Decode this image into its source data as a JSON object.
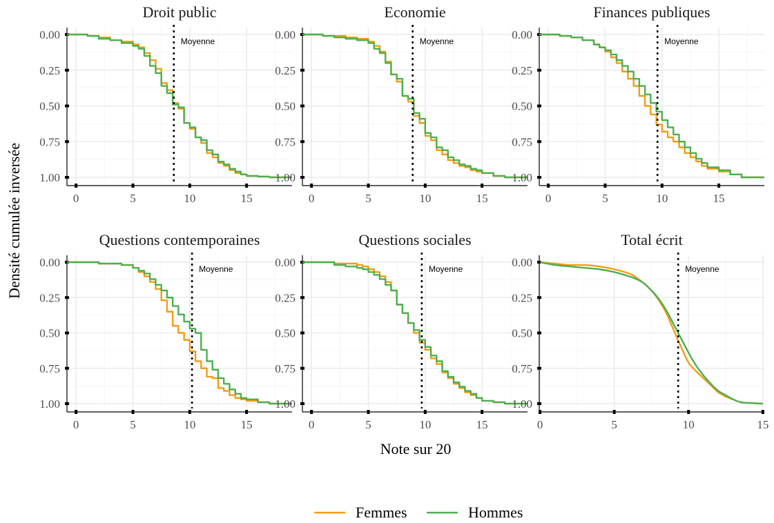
{
  "chart_data": {
    "type": "line",
    "xlabel": "Note sur 20",
    "ylabel": "Densité cumulée inversée",
    "mean_label": "Moyenne",
    "colors": {
      "Femmes": "#f39c12",
      "Hommes": "#4caf50"
    },
    "legend": {
      "position": "bottom",
      "entries": [
        "Femmes",
        "Hommes"
      ]
    },
    "grid": true,
    "y_reversed": true,
    "ylim": [
      0,
      1
    ],
    "yticks": [
      0,
      0.25,
      0.5,
      0.75,
      1
    ],
    "ytick_labels": [
      "0.00",
      "0.25",
      "0.50",
      "0.75",
      "1.00"
    ],
    "panels": [
      {
        "title": "Droit public",
        "xlim": [
          -0.8,
          19
        ],
        "xticks": [
          0,
          5,
          10,
          15
        ],
        "mean": 8.6,
        "step": true,
        "series": [
          {
            "name": "Femmes",
            "x": [
              -0.8,
              1,
              2,
              3,
              4,
              5,
              5.5,
              6,
              6.5,
              7,
              7.5,
              8,
              8.5,
              9,
              9.5,
              10,
              10.5,
              11,
              11.5,
              12,
              12.5,
              13,
              13.5,
              14,
              14.5,
              15,
              16,
              17,
              19
            ],
            "y": [
              0,
              0.01,
              0.02,
              0.04,
              0.05,
              0.07,
              0.09,
              0.13,
              0.18,
              0.24,
              0.34,
              0.39,
              0.48,
              0.52,
              0.62,
              0.66,
              0.72,
              0.76,
              0.83,
              0.86,
              0.9,
              0.92,
              0.95,
              0.97,
              0.98,
              0.99,
              0.995,
              1,
              1
            ]
          },
          {
            "name": "Hommes",
            "x": [
              -0.8,
              1,
              2,
              3,
              4,
              5,
              5.5,
              6,
              6.5,
              7,
              7.5,
              8,
              8.5,
              9,
              9.5,
              10,
              10.5,
              11,
              11.5,
              12,
              12.5,
              13,
              13.5,
              14,
              14.5,
              15,
              16,
              17,
              19
            ],
            "y": [
              0,
              0.01,
              0.03,
              0.04,
              0.06,
              0.08,
              0.1,
              0.15,
              0.22,
              0.27,
              0.36,
              0.41,
              0.49,
              0.51,
              0.62,
              0.65,
              0.72,
              0.74,
              0.81,
              0.84,
              0.89,
              0.91,
              0.94,
              0.96,
              0.98,
              0.99,
              0.995,
              1,
              1
            ]
          }
        ]
      },
      {
        "title": "Economie",
        "xlim": [
          -0.8,
          19
        ],
        "xticks": [
          0,
          5,
          10,
          15
        ],
        "mean": 8.9,
        "step": true,
        "series": [
          {
            "name": "Femmes",
            "x": [
              -0.8,
              1,
              2,
              3,
              4,
              5,
              5.5,
              6,
              6.5,
              7,
              7.5,
              8,
              8.5,
              9,
              9.5,
              10,
              10.5,
              11,
              11.5,
              12,
              12.5,
              13,
              13.5,
              14,
              14.5,
              15,
              16,
              17,
              19
            ],
            "y": [
              0,
              0.01,
              0.01,
              0.02,
              0.03,
              0.05,
              0.08,
              0.12,
              0.19,
              0.28,
              0.33,
              0.43,
              0.47,
              0.57,
              0.62,
              0.71,
              0.74,
              0.81,
              0.84,
              0.88,
              0.9,
              0.92,
              0.93,
              0.95,
              0.96,
              0.97,
              0.99,
              1,
              1
            ]
          },
          {
            "name": "Hommes",
            "x": [
              -0.8,
              1,
              2,
              3,
              4,
              5,
              5.5,
              6,
              6.5,
              7,
              7.5,
              8,
              8.5,
              9,
              9.5,
              10,
              10.5,
              11,
              11.5,
              12,
              12.5,
              13,
              13.5,
              14,
              14.5,
              15,
              16,
              17,
              19
            ],
            "y": [
              0,
              0.01,
              0.02,
              0.03,
              0.04,
              0.06,
              0.1,
              0.13,
              0.2,
              0.28,
              0.31,
              0.43,
              0.45,
              0.55,
              0.59,
              0.69,
              0.72,
              0.79,
              0.81,
              0.86,
              0.88,
              0.91,
              0.92,
              0.94,
              0.95,
              0.97,
              0.99,
              1,
              1
            ]
          }
        ]
      },
      {
        "title": "Finances publiques",
        "xlim": [
          -0.8,
          19
        ],
        "xticks": [
          0,
          5,
          10,
          15
        ],
        "mean": 9.6,
        "step": true,
        "series": [
          {
            "name": "Femmes",
            "x": [
              -0.8,
              1,
              2,
              3,
              4,
              4.5,
              5,
              5.5,
              6,
              6.5,
              7,
              7.5,
              8,
              8.5,
              9,
              9.5,
              10,
              10.5,
              11,
              11.5,
              12,
              12.5,
              13,
              13.5,
              14,
              15,
              16,
              17,
              19
            ],
            "y": [
              0,
              0.01,
              0.02,
              0.04,
              0.07,
              0.09,
              0.12,
              0.16,
              0.2,
              0.26,
              0.31,
              0.36,
              0.43,
              0.5,
              0.56,
              0.63,
              0.68,
              0.72,
              0.75,
              0.79,
              0.83,
              0.86,
              0.89,
              0.92,
              0.94,
              0.96,
              0.98,
              1,
              1
            ]
          },
          {
            "name": "Hommes",
            "x": [
              -0.8,
              1,
              2,
              3,
              4,
              4.5,
              5,
              5.5,
              6,
              6.5,
              7,
              7.5,
              8,
              8.5,
              9,
              9.5,
              10,
              10.5,
              11,
              11.5,
              12,
              12.5,
              13,
              13.5,
              14,
              15,
              16,
              17,
              19
            ],
            "y": [
              0,
              0.01,
              0.02,
              0.04,
              0.07,
              0.09,
              0.11,
              0.14,
              0.18,
              0.22,
              0.26,
              0.31,
              0.36,
              0.42,
              0.48,
              0.54,
              0.6,
              0.65,
              0.7,
              0.75,
              0.79,
              0.83,
              0.87,
              0.9,
              0.93,
              0.95,
              0.98,
              1,
              1
            ]
          }
        ]
      },
      {
        "title": "Questions contemporaines",
        "xlim": [
          -0.8,
          19
        ],
        "xticks": [
          0,
          5,
          10,
          15
        ],
        "mean": 10.2,
        "step": true,
        "series": [
          {
            "name": "Femmes",
            "x": [
              -0.8,
              2,
              4,
              5,
              5.5,
              6,
              6.5,
              7,
              7.5,
              8,
              8.5,
              9,
              9.5,
              10,
              10.5,
              11,
              11.5,
              12,
              12.5,
              13,
              13.5,
              14,
              14.5,
              15,
              16,
              17,
              19
            ],
            "y": [
              0,
              0.01,
              0.02,
              0.04,
              0.07,
              0.1,
              0.14,
              0.19,
              0.27,
              0.35,
              0.45,
              0.5,
              0.55,
              0.63,
              0.7,
              0.75,
              0.81,
              0.82,
              0.89,
              0.91,
              0.94,
              0.96,
              0.97,
              0.98,
              0.99,
              1,
              1
            ]
          },
          {
            "name": "Hommes",
            "x": [
              -0.8,
              2,
              4,
              5,
              5.5,
              6,
              6.5,
              7,
              7.5,
              8,
              8.5,
              9,
              9.5,
              10,
              10.5,
              11,
              11.5,
              12,
              12.5,
              13,
              13.5,
              14,
              14.5,
              15,
              16,
              17,
              19
            ],
            "y": [
              0,
              0.01,
              0.02,
              0.04,
              0.06,
              0.08,
              0.12,
              0.16,
              0.2,
              0.25,
              0.31,
              0.37,
              0.42,
              0.47,
              0.5,
              0.62,
              0.7,
              0.76,
              0.82,
              0.86,
              0.9,
              0.93,
              0.96,
              0.97,
              0.99,
              1,
              1
            ]
          }
        ]
      },
      {
        "title": "Questions sociales",
        "xlim": [
          -0.8,
          19
        ],
        "xticks": [
          0,
          5,
          10,
          15
        ],
        "mean": 9.7,
        "step": true,
        "series": [
          {
            "name": "Femmes",
            "x": [
              -0.8,
              2,
              3,
              4,
              4.5,
              5,
              5.5,
              6,
              6.5,
              7,
              7.5,
              8,
              8.5,
              9,
              9.5,
              10,
              10.5,
              11,
              11.5,
              12,
              12.5,
              13,
              13.5,
              14,
              14.5,
              15,
              16,
              17,
              19
            ],
            "y": [
              0,
              0.01,
              0.01,
              0.02,
              0.03,
              0.05,
              0.07,
              0.1,
              0.14,
              0.2,
              0.3,
              0.36,
              0.43,
              0.5,
              0.57,
              0.62,
              0.68,
              0.72,
              0.78,
              0.82,
              0.86,
              0.89,
              0.92,
              0.94,
              0.96,
              0.98,
              0.99,
              1,
              1
            ]
          },
          {
            "name": "Hommes",
            "x": [
              -0.8,
              2,
              3,
              4,
              4.5,
              5,
              5.5,
              6,
              6.5,
              7,
              7.5,
              8,
              8.5,
              9,
              9.5,
              10,
              10.5,
              11,
              11.5,
              12,
              12.5,
              13,
              13.5,
              14,
              14.5,
              15,
              16,
              17,
              19
            ],
            "y": [
              0,
              0.02,
              0.03,
              0.04,
              0.05,
              0.07,
              0.09,
              0.12,
              0.16,
              0.2,
              0.3,
              0.36,
              0.43,
              0.48,
              0.55,
              0.6,
              0.66,
              0.7,
              0.77,
              0.81,
              0.85,
              0.88,
              0.91,
              0.93,
              0.96,
              0.98,
              0.99,
              1,
              1
            ]
          }
        ]
      },
      {
        "title": "Total écrit",
        "xlim": [
          -0.05,
          15.1
        ],
        "xticks": [
          0,
          5,
          10,
          15
        ],
        "mean": 9.3,
        "step": false,
        "series": [
          {
            "name": "Femmes",
            "x": [
              0,
              1,
              2,
              3,
              4,
              5,
              6,
              6.5,
              7,
              7.5,
              8,
              8.5,
              9,
              9.5,
              10,
              10.5,
              11,
              11.5,
              12,
              12.5,
              13,
              13.5,
              14,
              15
            ],
            "y": [
              0,
              0.01,
              0.02,
              0.02,
              0.03,
              0.05,
              0.08,
              0.11,
              0.15,
              0.2,
              0.27,
              0.36,
              0.48,
              0.6,
              0.71,
              0.77,
              0.82,
              0.87,
              0.92,
              0.95,
              0.97,
              0.99,
              0.995,
              1
            ]
          },
          {
            "name": "Hommes",
            "x": [
              0,
              1,
              2,
              3,
              4,
              5,
              6,
              6.5,
              7,
              7.5,
              8,
              8.5,
              9,
              9.5,
              10,
              10.5,
              11,
              11.5,
              12,
              12.5,
              13,
              13.5,
              14,
              15
            ],
            "y": [
              0,
              0.02,
              0.03,
              0.04,
              0.05,
              0.07,
              0.1,
              0.12,
              0.15,
              0.2,
              0.26,
              0.34,
              0.44,
              0.54,
              0.64,
              0.73,
              0.8,
              0.86,
              0.91,
              0.94,
              0.97,
              0.99,
              0.995,
              1
            ]
          }
        ]
      }
    ]
  }
}
